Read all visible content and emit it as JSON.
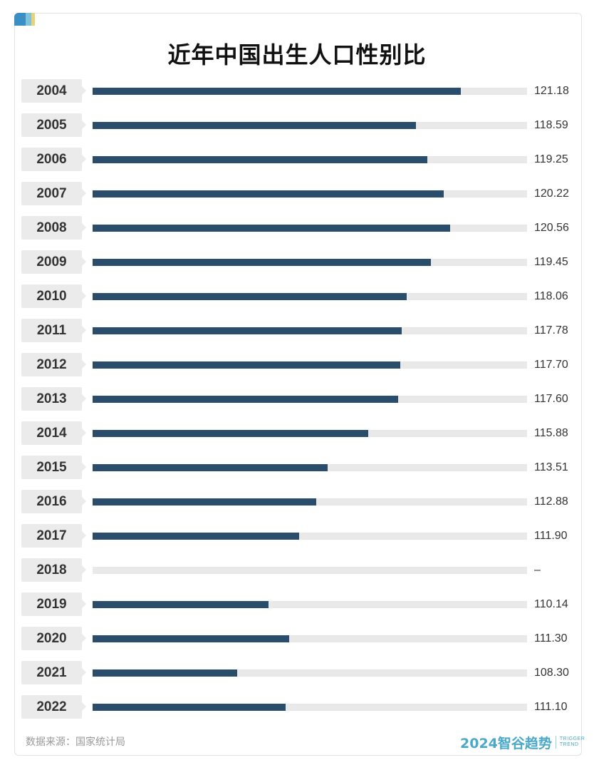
{
  "title": "近年中国出生人口性别比",
  "source": "数据来源：国家统计局",
  "logo": {
    "main": "2024智谷趋势",
    "sub_line1": "TRIGGER",
    "sub_line2": "TREND"
  },
  "colors": {
    "bar": "#2a4d6b",
    "track": "#e9e9e9",
    "year_box": "#ebebeb",
    "logo": "#4aa8c9"
  },
  "chart_data": {
    "type": "bar",
    "orientation": "horizontal",
    "title": "近年中国出生人口性别比",
    "categories": [
      "2004",
      "2005",
      "2006",
      "2007",
      "2008",
      "2009",
      "2010",
      "2011",
      "2012",
      "2013",
      "2014",
      "2015",
      "2016",
      "2017",
      "2018",
      "2019",
      "2020",
      "2021",
      "2022"
    ],
    "values": [
      121.18,
      118.59,
      119.25,
      120.22,
      120.56,
      119.45,
      118.06,
      117.78,
      117.7,
      117.6,
      115.88,
      113.51,
      112.88,
      111.9,
      null,
      110.14,
      111.3,
      108.3,
      111.1
    ],
    "value_labels": [
      "121.18",
      "118.59",
      "119.25",
      "120.22",
      "120.56",
      "119.45",
      "118.06",
      "117.78",
      "117.70",
      "117.60",
      "115.88",
      "113.51",
      "112.88",
      "111.90",
      "–",
      "110.14",
      "111.30",
      "108.30",
      "111.10"
    ],
    "xlim": [
      100,
      125
    ],
    "grid": false,
    "legend": "none"
  }
}
